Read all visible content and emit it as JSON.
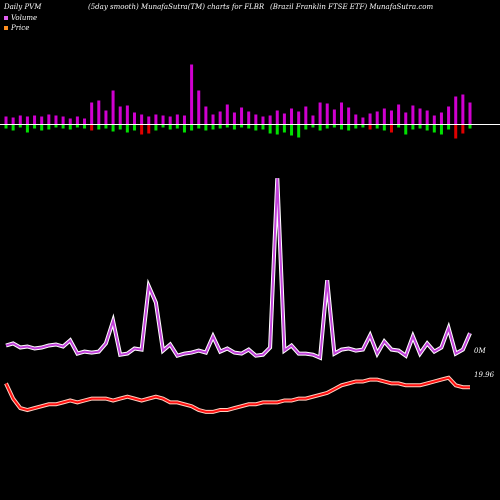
{
  "header": {
    "left": "Daily PVM",
    "mid": "(5day smooth) MunafaSutra(TM) charts for FLBR",
    "right": "(Brazil Franklin FTSE ETF) MunafaSutra.com"
  },
  "legend": {
    "volume_label": "Volume",
    "price_label": "Price",
    "volume_color": "#e060f0",
    "price_color": "#ff9020"
  },
  "colors": {
    "background": "#000000",
    "baseline": "#ffffff",
    "volume_line": "#c040d8",
    "price_line": "#ff1010",
    "bar_up": "#d000d0",
    "bar_down_green": "#00e000",
    "bar_down_red": "#e00000"
  },
  "chart_data": {
    "type": "line",
    "n_points": 66,
    "y_labels": {
      "volume": "0M",
      "price": "19.96"
    },
    "bars": {
      "up": [
        8,
        7,
        9,
        8,
        9,
        8,
        10,
        9,
        8,
        6,
        8,
        6,
        22,
        24,
        14,
        34,
        18,
        19,
        12,
        10,
        8,
        10,
        9,
        8,
        10,
        9,
        60,
        34,
        18,
        10,
        13,
        20,
        12,
        17,
        13,
        10,
        8,
        9,
        14,
        11,
        16,
        13,
        18,
        9,
        22,
        21,
        15,
        22,
        17,
        10,
        7,
        11,
        13,
        16,
        14,
        20,
        12,
        19,
        16,
        14,
        9,
        12,
        18,
        28,
        30,
        22
      ],
      "down": [
        [
          4,
          "g"
        ],
        [
          6,
          "g"
        ],
        [
          3,
          "g"
        ],
        [
          8,
          "g"
        ],
        [
          4,
          "g"
        ],
        [
          6,
          "g"
        ],
        [
          5,
          "g"
        ],
        [
          3,
          "g"
        ],
        [
          4,
          "g"
        ],
        [
          5,
          "g"
        ],
        [
          3,
          "g"
        ],
        [
          4,
          "g"
        ],
        [
          6,
          "r"
        ],
        [
          5,
          "g"
        ],
        [
          4,
          "g"
        ],
        [
          7,
          "g"
        ],
        [
          5,
          "g"
        ],
        [
          8,
          "g"
        ],
        [
          6,
          "g"
        ],
        [
          10,
          "r"
        ],
        [
          9,
          "r"
        ],
        [
          6,
          "g"
        ],
        [
          3,
          "g"
        ],
        [
          5,
          "g"
        ],
        [
          4,
          "g"
        ],
        [
          8,
          "g"
        ],
        [
          6,
          "g"
        ],
        [
          4,
          "g"
        ],
        [
          6,
          "g"
        ],
        [
          5,
          "g"
        ],
        [
          4,
          "g"
        ],
        [
          3,
          "g"
        ],
        [
          5,
          "g"
        ],
        [
          3,
          "g"
        ],
        [
          4,
          "g"
        ],
        [
          6,
          "g"
        ],
        [
          5,
          "g"
        ],
        [
          9,
          "g"
        ],
        [
          10,
          "g"
        ],
        [
          8,
          "g"
        ],
        [
          11,
          "g"
        ],
        [
          13,
          "g"
        ],
        [
          5,
          "g"
        ],
        [
          3,
          "g"
        ],
        [
          6,
          "g"
        ],
        [
          4,
          "g"
        ],
        [
          3,
          "g"
        ],
        [
          5,
          "g"
        ],
        [
          6,
          "g"
        ],
        [
          4,
          "g"
        ],
        [
          3,
          "g"
        ],
        [
          5,
          "r"
        ],
        [
          4,
          "g"
        ],
        [
          6,
          "g"
        ],
        [
          8,
          "r"
        ],
        [
          3,
          "g"
        ],
        [
          10,
          "g"
        ],
        [
          5,
          "g"
        ],
        [
          4,
          "g"
        ],
        [
          6,
          "g"
        ],
        [
          8,
          "g"
        ],
        [
          10,
          "g"
        ],
        [
          5,
          "g"
        ],
        [
          14,
          "r"
        ],
        [
          9,
          "r"
        ],
        [
          4,
          "g"
        ]
      ]
    },
    "volume": [
      26,
      28,
      24,
      25,
      23,
      24,
      26,
      27,
      25,
      31,
      18,
      20,
      19,
      20,
      28,
      50,
      17,
      18,
      23,
      22,
      84,
      68,
      21,
      27,
      16,
      18,
      19,
      21,
      19,
      35,
      20,
      23,
      19,
      18,
      22,
      16,
      17,
      24,
      190,
      21,
      26,
      18,
      18,
      17,
      14,
      90,
      18,
      22,
      23,
      21,
      22,
      36,
      18,
      30,
      22,
      21,
      16,
      35,
      18,
      28,
      20,
      24,
      43,
      18,
      22,
      38
    ],
    "price": [
      14,
      6,
      1,
      0,
      1,
      2,
      3,
      3,
      4,
      5,
      4,
      5,
      6,
      6,
      6,
      5,
      6,
      7,
      6,
      5,
      6,
      7,
      6,
      4,
      4,
      3,
      2,
      0,
      -1,
      -1,
      0,
      0,
      1,
      2,
      3,
      3,
      4,
      4,
      4,
      5,
      5,
      6,
      6,
      7,
      8,
      9,
      11,
      13,
      14,
      15,
      15,
      16,
      16,
      15,
      14,
      14,
      13,
      13,
      13,
      14,
      15,
      16,
      17,
      13,
      12,
      12
    ]
  }
}
